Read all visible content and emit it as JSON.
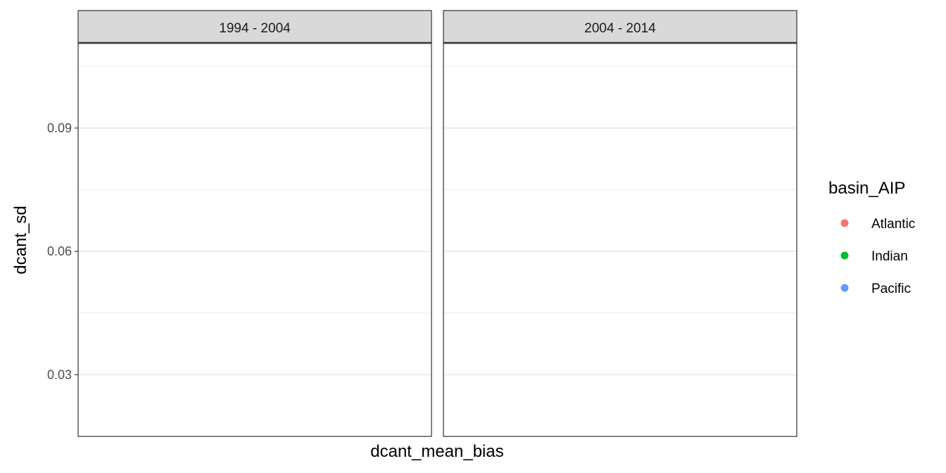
{
  "chart_data": {
    "type": "scatter",
    "facets": [
      "1994 - 2004",
      "2004 - 2014"
    ],
    "xlabel": "dcant_mean_bias",
    "ylabel": "dcant_sd",
    "ylim": [
      0.015,
      0.1107
    ],
    "y_ticks": [
      0.03,
      0.06,
      0.09
    ],
    "y_tick_labels": [
      "0.03",
      "0.06",
      "0.09"
    ],
    "y_minor_ticks": [
      0.015,
      0.045,
      0.075,
      0.105
    ],
    "grid": true,
    "legend": {
      "title": "basin_AIP",
      "position": "right",
      "entries": [
        {
          "label": "Atlantic",
          "color": "#F8766D"
        },
        {
          "label": "Indian",
          "color": "#00BA38"
        },
        {
          "label": "Pacific",
          "color": "#619CFF"
        }
      ]
    },
    "series": [
      {
        "name": "Atlantic",
        "points": []
      },
      {
        "name": "Indian",
        "points": []
      },
      {
        "name": "Pacific",
        "points": []
      }
    ]
  }
}
